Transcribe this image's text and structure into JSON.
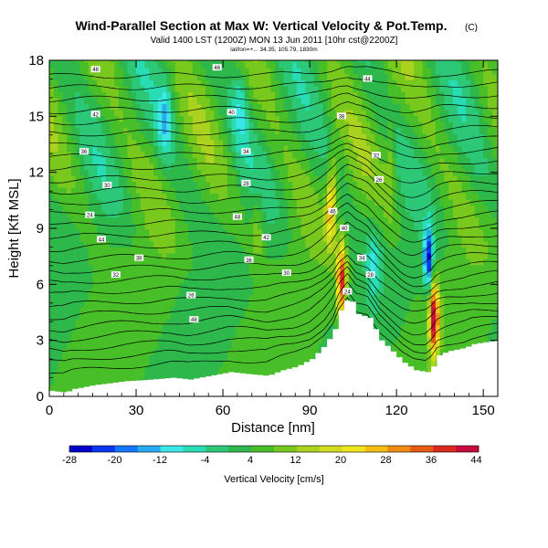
{
  "header": {
    "title": "Wind-Parallel Section at Max W: Vertical Velocity & Pot.Temp.",
    "copyright": "(C)",
    "subtitle": "Valid 1400 LST (1200Z) MON 13 Jun 2011 [10hr cst@2200Z]",
    "subtitle2": "lat/lon=+... 34.35, 105.79, 1830m"
  },
  "colorbar": {
    "label": "Vertical Velocity [cm/s]",
    "ticks": [
      "-28",
      "-20",
      "-12",
      "-4",
      "4",
      "12",
      "20",
      "28",
      "36",
      "44"
    ],
    "colors": [
      "#0000c8",
      "#0a37f0",
      "#1478ff",
      "#2aaaf0",
      "#3ce6e6",
      "#28dcb4",
      "#2cc878",
      "#2eb84c",
      "#48be28",
      "#78c81e",
      "#aad21e",
      "#d2dc1e",
      "#f0e61e",
      "#f5be14",
      "#f08c14",
      "#e65a14",
      "#dc281e",
      "#c80a3c"
    ]
  },
  "chart_data": {
    "type": "heatmap",
    "xlabel": "Distance [nm]",
    "ylabel": "Height [Kft MSL]",
    "xlim": [
      0,
      155
    ],
    "ylim": [
      0,
      18
    ],
    "x_ticks": [
      0,
      30,
      60,
      90,
      120,
      150
    ],
    "y_ticks": [
      0,
      3,
      6,
      9,
      12,
      15,
      18
    ],
    "colorbar_range": [
      -32,
      48
    ],
    "features": [
      {
        "name": "updraft-core-west",
        "x": 101,
        "y": 6.2,
        "w": 44
      },
      {
        "name": "updraft-core-east",
        "x": 133,
        "y": 4.2,
        "w": 48
      },
      {
        "name": "downdraft-core-east",
        "x": 131,
        "y": 7.4,
        "w": -28
      },
      {
        "name": "updraft-band-upper",
        "x": 97,
        "y": 9.8,
        "w": 22
      }
    ],
    "terrain": {
      "x": [
        0,
        5,
        8,
        15,
        25,
        35,
        42,
        48,
        55,
        62,
        68,
        75,
        80,
        85,
        90,
        95,
        98,
        100,
        103,
        106,
        110,
        114,
        118,
        122,
        126,
        130,
        132,
        134,
        137,
        140,
        143,
        146,
        150,
        155
      ],
      "y": [
        0.3,
        0.2,
        0.4,
        0.6,
        0.8,
        0.9,
        1.0,
        0.9,
        1.1,
        1.3,
        1.2,
        1.1,
        1.4,
        1.6,
        2.0,
        2.8,
        3.6,
        4.6,
        5.4,
        4.4,
        4.2,
        3.0,
        2.4,
        1.8,
        1.4,
        1.3,
        1.6,
        2.2,
        2.4,
        2.5,
        2.6,
        2.8,
        2.9,
        3.0
      ]
    },
    "contour_labels": [
      "48",
      "46",
      "44",
      "42",
      "40",
      "38",
      "36",
      "34",
      "32",
      "30",
      "28",
      "26",
      "24"
    ]
  }
}
